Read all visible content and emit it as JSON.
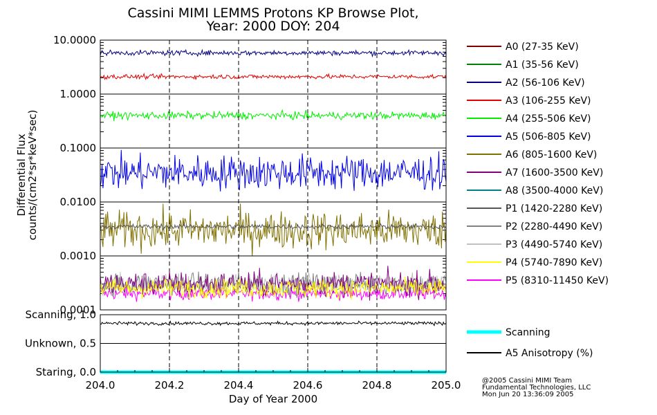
{
  "title_line1": "Cassini MIMI LEMMS Protons KP Browse Plot,",
  "title_line2": "Year: 2000 DOY: 204",
  "footer": {
    "line1": "@2005 Cassini MIMI Team",
    "line2": "Fundamental Technologies, LLC",
    "line3": "Mon Jun 20 13:36:09 2005"
  },
  "chart_data": [
    {
      "type": "line",
      "name": "flux-panel",
      "yscale": "log",
      "ylim": [
        0.0001,
        10
      ],
      "xlim": [
        204.0,
        205.0
      ],
      "ylabel_line1": "Differential Flux",
      "ylabel_line2": "counts/(cm2*sr*keV*sec)",
      "y_ticks": [
        {
          "value": 10,
          "label": "10.0000"
        },
        {
          "value": 1,
          "label": "1.0000"
        },
        {
          "value": 0.1,
          "label": "0.1000"
        },
        {
          "value": 0.01,
          "label": "0.0100"
        },
        {
          "value": 0.001,
          "label": "0.0010"
        },
        {
          "value": 0.0001,
          "label": "0.0001"
        }
      ],
      "series": [
        {
          "name": "A0 (27-35 KeV)",
          "color": "#800000",
          "level": null
        },
        {
          "name": "A1 (35-56 KeV)",
          "color": "#008000",
          "level": null
        },
        {
          "name": "A2 (56-106 KeV)",
          "color": "#000080",
          "level": 5.8,
          "jitter": 0.08
        },
        {
          "name": "A3 (106-255 KeV)",
          "color": "#e00000",
          "level": 2.1,
          "jitter": 0.07
        },
        {
          "name": "A4 (255-506 KeV)",
          "color": "#00ee00",
          "level": 0.4,
          "jitter": 0.12
        },
        {
          "name": "A5 (506-805 KeV)",
          "color": "#0000e6",
          "level": 0.035,
          "jitter": 0.55
        },
        {
          "name": "A6 (805-1600 KeV)",
          "color": "#807000",
          "level": 0.003,
          "jitter": 0.6
        },
        {
          "name": "A7 (1600-3500 KeV)",
          "color": "#800080",
          "level": 0.0003,
          "jitter": 0.4
        },
        {
          "name": "A8 (3500-4000 KeV)",
          "color": "#008080",
          "level": null
        },
        {
          "name": "P1 (1420-2280 KeV)",
          "color": "#555555",
          "level": 0.0035,
          "jitter": 0.08
        },
        {
          "name": "P2 (2280-4490 KeV)",
          "color": "#808080",
          "level": 0.0003,
          "jitter": 0.35
        },
        {
          "name": "P3 (4490-5740 KeV)",
          "color": "#c0c0c0",
          "level": 0.0003,
          "jitter": 0.3
        },
        {
          "name": "P4 (5740-7890 KeV)",
          "color": "#ffff00",
          "level": 0.00025,
          "jitter": 0.3
        },
        {
          "name": "P5 (8310-11450 KeV)",
          "color": "#ff00ff",
          "level": 0.0002,
          "jitter": 0.2
        }
      ]
    },
    {
      "type": "line",
      "name": "anisotropy-panel",
      "xlabel": "Day of Year 2000",
      "xlim": [
        204.0,
        205.0
      ],
      "ylim": [
        0.0,
        1.0
      ],
      "x_ticks": [
        {
          "value": 204.0,
          "label": "204.0"
        },
        {
          "value": 204.2,
          "label": "204.2"
        },
        {
          "value": 204.4,
          "label": "204.4"
        },
        {
          "value": 204.6,
          "label": "204.6"
        },
        {
          "value": 204.8,
          "label": "204.8"
        },
        {
          "value": 205.0,
          "label": "205.0"
        }
      ],
      "y_ticks": [
        {
          "value": 1.0,
          "label": "Scanning, 1.0"
        },
        {
          "value": 0.5,
          "label": "Unknown, 0.5"
        },
        {
          "value": 0.0,
          "label": "Staring, 0.0"
        }
      ],
      "series": [
        {
          "name": "Scanning",
          "color": "#00ffff",
          "level": 0.0
        },
        {
          "name": "A5 Anisotropy (%)",
          "color": "#000000",
          "level": 0.85,
          "jitter": 0.05
        }
      ]
    }
  ]
}
